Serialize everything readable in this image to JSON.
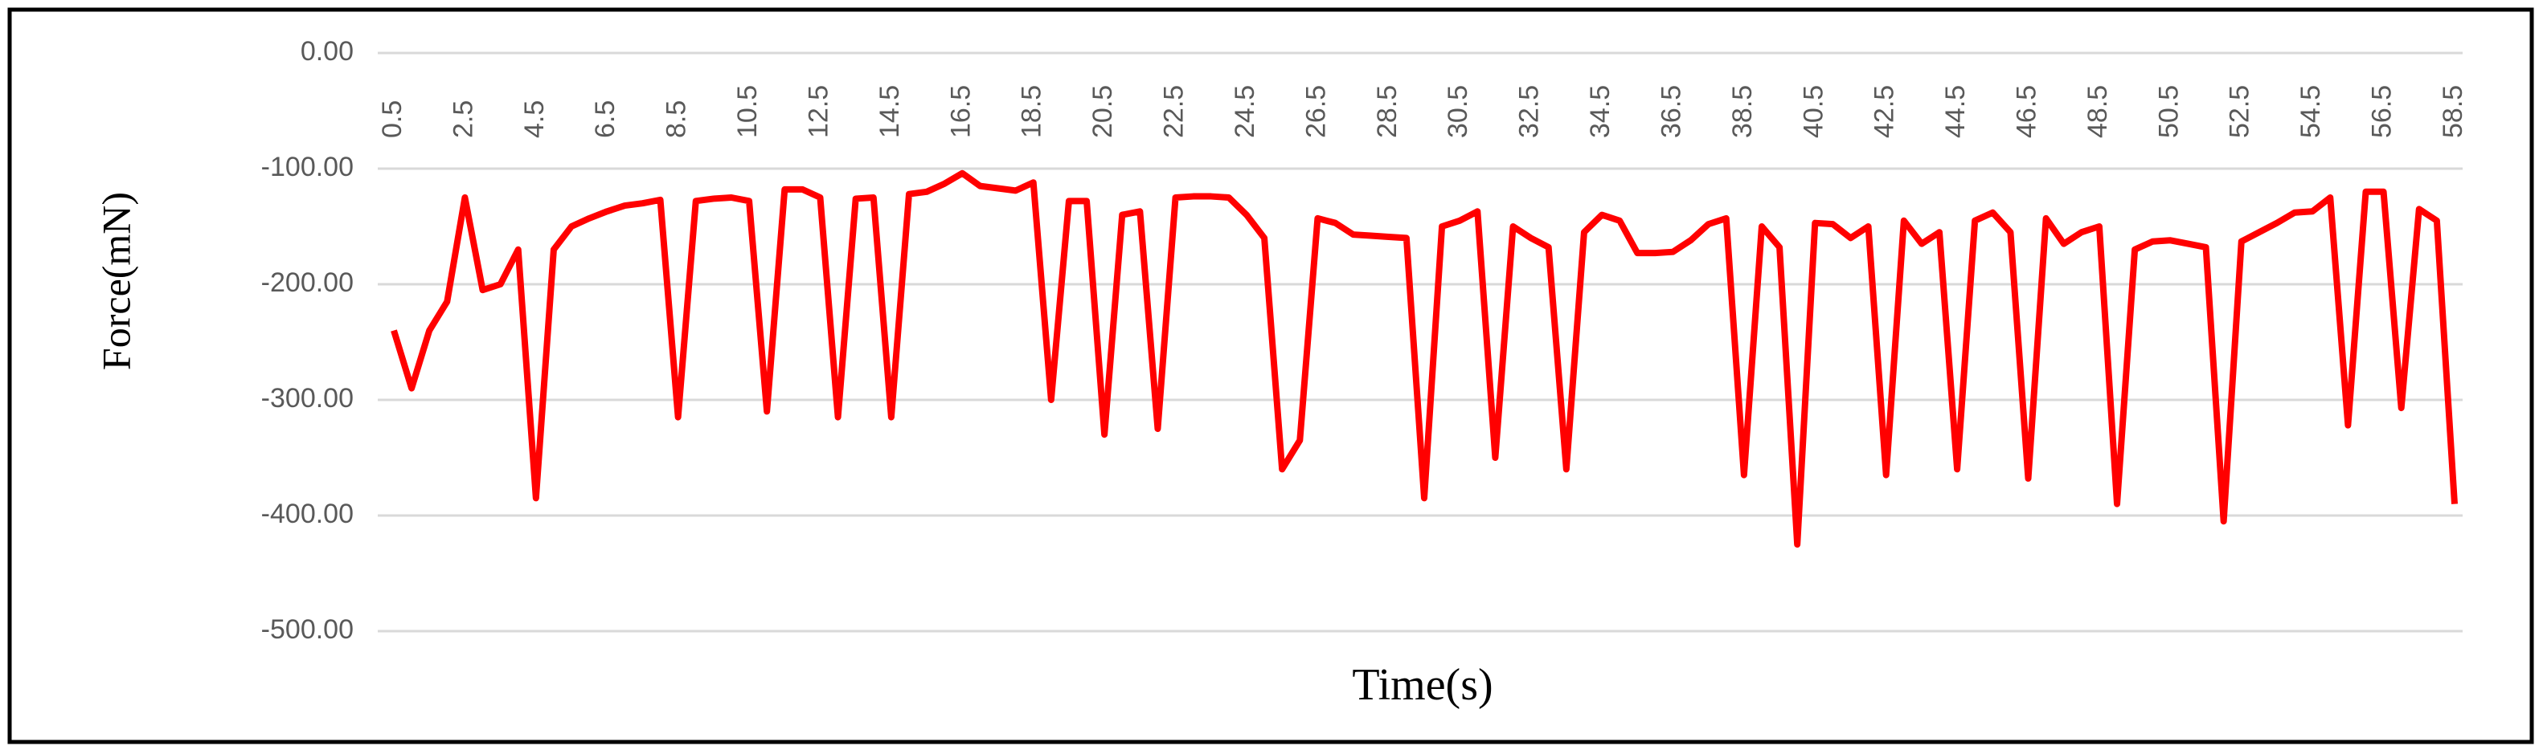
{
  "chart_data": {
    "type": "line",
    "xlabel": "Time(s)",
    "ylabel": "Force(mN)",
    "categories": [
      "0.5",
      null,
      null,
      null,
      "2.5",
      null,
      null,
      null,
      "4.5",
      null,
      null,
      null,
      "6.5",
      null,
      null,
      null,
      "8.5",
      null,
      null,
      null,
      "10.5",
      null,
      null,
      null,
      "12.5",
      null,
      null,
      null,
      "14.5",
      null,
      null,
      null,
      "16.5",
      null,
      null,
      null,
      "18.5",
      null,
      null,
      null,
      "20.5",
      null,
      null,
      null,
      "22.5",
      null,
      null,
      null,
      "24.5",
      null,
      null,
      null,
      "26.5",
      null,
      null,
      null,
      "28.5",
      null,
      null,
      null,
      "30.5",
      null,
      null,
      null,
      "32.5",
      null,
      null,
      null,
      "34.5",
      null,
      null,
      null,
      "36.5",
      null,
      null,
      null,
      "38.5",
      null,
      null,
      null,
      "40.5",
      null,
      null,
      null,
      "42.5",
      null,
      null,
      null,
      "44.5",
      null,
      null,
      null,
      "46.5",
      null,
      null,
      null,
      "48.5",
      null,
      null,
      null,
      "50.5",
      null,
      null,
      null,
      "52.5",
      null,
      null,
      null,
      "54.5",
      null,
      null,
      null,
      "56.5",
      null,
      null,
      null,
      "58.5"
    ],
    "series": [
      {
        "name": "Force",
        "color": "#ff0000",
        "values": [
          -240,
          -290,
          -240,
          -215,
          -125,
          -205,
          -200,
          -170,
          -385,
          -170,
          -150,
          -143,
          -137,
          -132,
          -130,
          -127,
          -315,
          -128,
          -126,
          -125,
          -128,
          -310,
          -118,
          -118,
          -125,
          -315,
          -126,
          -125,
          -315,
          -122,
          -120,
          -113,
          -104,
          -115,
          -117,
          -119,
          -112,
          -300,
          -128,
          -128,
          -330,
          -140,
          -137,
          -325,
          -125,
          -124,
          -124,
          -125,
          -140,
          -160,
          -360,
          -335,
          -143,
          -147,
          -157,
          -158,
          -159,
          -160,
          -385,
          -150,
          -145,
          -137,
          -350,
          -150,
          -160,
          -168,
          -360,
          -155,
          -140,
          -145,
          -173,
          -173,
          -172,
          -162,
          -148,
          -143,
          -365,
          -150,
          -168,
          -425,
          -147,
          -148,
          -160,
          -150,
          -365,
          -145,
          -165,
          -155,
          -360,
          -145,
          -138,
          -155,
          -368,
          -143,
          -165,
          -155,
          -150,
          -390,
          -170,
          -163,
          -162,
          -165,
          -168,
          -405,
          -163,
          -155,
          -147,
          -138,
          -137,
          -125,
          -322,
          -120,
          -120,
          -307,
          -135,
          -145,
          -390
        ]
      }
    ],
    "ylim": [
      -500,
      0
    ],
    "yticks": [
      {
        "value": 0,
        "label": "0.00"
      },
      {
        "value": -100,
        "label": "-100.00"
      },
      {
        "value": -200,
        "label": "-200.00"
      },
      {
        "value": -300,
        "label": "-300.00"
      },
      {
        "value": -400,
        "label": "-400.00"
      },
      {
        "value": -500,
        "label": "-500.00"
      }
    ],
    "grid": true
  }
}
